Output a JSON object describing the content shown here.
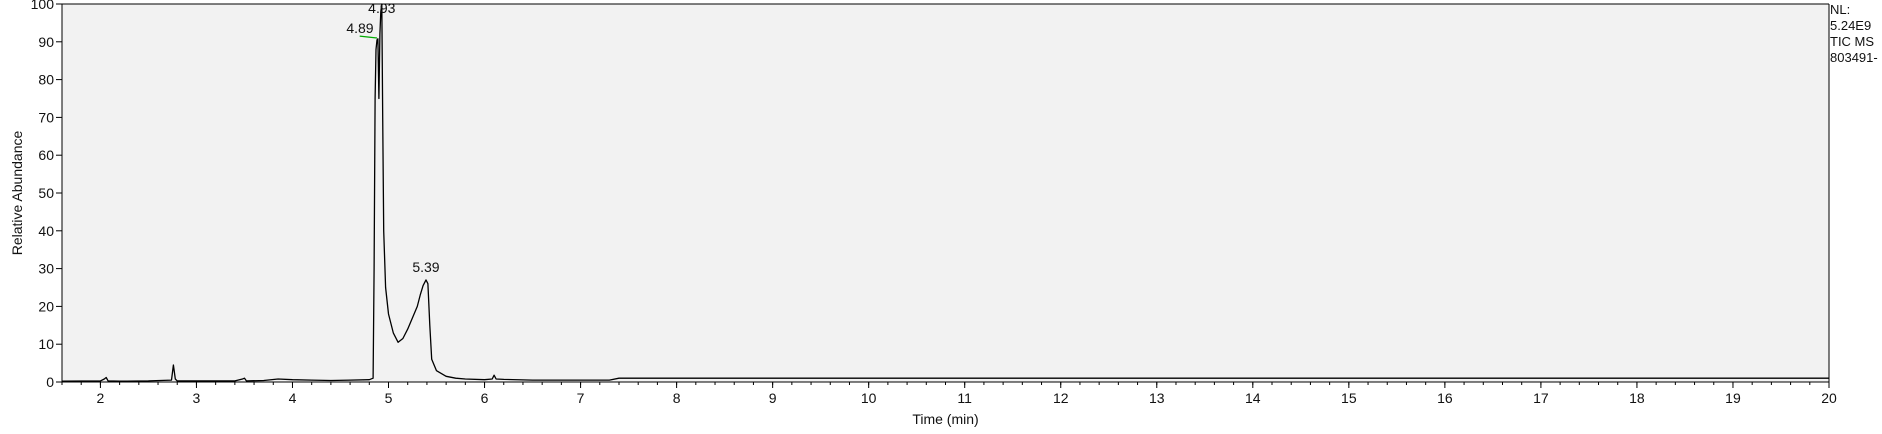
{
  "side_info": {
    "line1": "NL:",
    "line2": "5.24E9",
    "line3": "TIC  MS",
    "line4": "803491-"
  },
  "chart_data": {
    "type": "line",
    "title": "",
    "xlabel": "Time (min)",
    "ylabel": "Relative Abundance",
    "xlim": [
      1.6,
      20
    ],
    "ylim": [
      0,
      100
    ],
    "x_ticks": [
      2,
      3,
      4,
      5,
      6,
      7,
      8,
      9,
      10,
      11,
      12,
      13,
      14,
      15,
      16,
      17,
      18,
      19,
      20
    ],
    "y_ticks": [
      0,
      10,
      20,
      30,
      40,
      50,
      60,
      70,
      80,
      90,
      100
    ],
    "grid": false,
    "background_color": "#f2f2f2",
    "line_color": "#000000",
    "baseline_color": "#00aa00",
    "series": [
      {
        "x": [
          1.6,
          2.0,
          2.04,
          2.06,
          2.08,
          2.2,
          2.5,
          2.74,
          2.76,
          2.78,
          2.8,
          3.0,
          3.4,
          3.48,
          3.5,
          3.52,
          3.7,
          3.85,
          4.0,
          4.2,
          4.4,
          4.6,
          4.8,
          4.84,
          4.85,
          4.86,
          4.87,
          4.88,
          4.89,
          4.9,
          4.91,
          4.92,
          4.93,
          4.94,
          4.95,
          4.97,
          5.0,
          5.05,
          5.1,
          5.15,
          5.2,
          5.25,
          5.3,
          5.33,
          5.36,
          5.39,
          5.41,
          5.43,
          5.45,
          5.5,
          5.6,
          5.7,
          5.8,
          6.0,
          6.08,
          6.1,
          6.12,
          6.2,
          6.5,
          7.0,
          7.3,
          7.4,
          8.0,
          10.0,
          12.0,
          14.0,
          16.0,
          18.0,
          20.0
        ],
        "y": [
          0.2,
          0.3,
          0.8,
          1.2,
          0.3,
          0.2,
          0.3,
          0.5,
          4.5,
          0.8,
          0.3,
          0.3,
          0.3,
          0.8,
          1.0,
          0.3,
          0.4,
          0.8,
          0.6,
          0.5,
          0.4,
          0.5,
          0.6,
          1.0,
          30.0,
          75.0,
          88.0,
          90.5,
          90.8,
          75.0,
          92.0,
          98.0,
          100.0,
          70.0,
          40.0,
          25.0,
          18.0,
          13.0,
          10.5,
          11.5,
          14.0,
          17.0,
          20.0,
          23.0,
          25.5,
          27.0,
          26.0,
          15.0,
          6.0,
          3.0,
          1.5,
          1.0,
          0.8,
          0.6,
          0.8,
          1.8,
          0.8,
          0.7,
          0.5,
          0.5,
          0.5,
          1.0,
          1.0,
          1.0,
          1.0,
          1.0,
          1.0,
          1.0,
          1.0
        ]
      }
    ],
    "peak_labels": [
      {
        "label": "4.93",
        "x": 4.93,
        "y": 100
      },
      {
        "label": "4.89",
        "x": 4.89,
        "y": 90.8
      },
      {
        "label": "5.39",
        "x": 5.39,
        "y": 27
      }
    ],
    "baseline_marker": {
      "x": [
        4.7,
        4.88
      ],
      "y": [
        91.5,
        91.0
      ]
    }
  }
}
